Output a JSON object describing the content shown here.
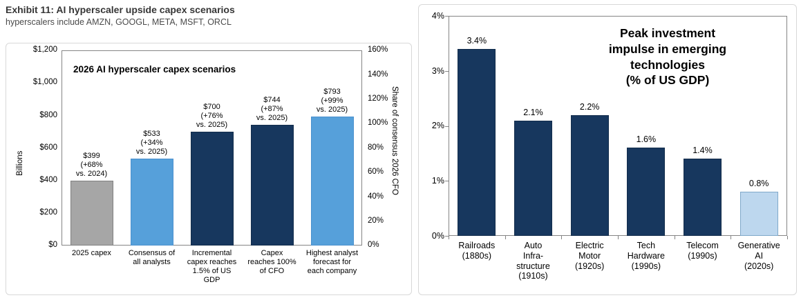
{
  "header": {
    "title": "Exhibit 11: AI hyperscaler upside capex scenarios",
    "subtitle": "hyperscalers include AMZN, GOOGL, META, MSFT, ORCL"
  },
  "colors": {
    "navy": {
      "fill": "#17375E",
      "border": "#122C4B"
    },
    "blue": {
      "fill": "#56A0DA",
      "border": "#4A90CE"
    },
    "pale": {
      "fill": "#BDD7EE",
      "border": "#7FA8C9"
    },
    "gray": {
      "fill": "#A6A6A6",
      "border": "#7F7F7F"
    }
  },
  "chart_data": [
    {
      "id": "capex",
      "type": "bar",
      "title": "2026 AI hyperscaler capex scenarios",
      "ylabel": "Billions",
      "ylabel_right": "Share of consensus 2026 CFO",
      "ylim": [
        0,
        1200
      ],
      "ylim_right": [
        0,
        160
      ],
      "grid": false,
      "legend": "none",
      "yticks_left": [
        "$1,200",
        "$1,000",
        "$800",
        "$600",
        "$400",
        "$200",
        "$0"
      ],
      "yticks_right": [
        "160%",
        "140%",
        "120%",
        "100%",
        "80%",
        "60%",
        "40%",
        "20%",
        "0%"
      ],
      "categories": [
        "2025 capex",
        "Consensus of\nall analysts",
        "Incremental\ncapex reaches\n1.5% of US\nGDP",
        "Capex\nreaches 100%\nof CFO",
        "Highest analyst\nforecast for\neach company"
      ],
      "values": [
        399,
        533,
        700,
        744,
        793
      ],
      "bar_labels": [
        "$399\n(+68%\nvs. 2024)",
        "$533\n(+34%\nvs. 2025)",
        "$700\n(+76%\nvs. 2025)",
        "$744\n(+87%\nvs. 2025)",
        "$793\n(+99%\nvs. 2025)"
      ],
      "bar_colors": [
        "gray",
        "blue",
        "navy",
        "navy",
        "blue"
      ]
    },
    {
      "id": "impulse",
      "type": "bar",
      "title": "Peak investment\nimpulse in emerging\ntechnologies\n(% of US GDP)",
      "ylabel": "",
      "ylim": [
        0,
        4
      ],
      "grid": false,
      "legend": "none",
      "yticks_left": [
        "4%",
        "3%",
        "2%",
        "1%",
        "0%"
      ],
      "categories": [
        "Railroads\n(1880s)",
        "Auto\nInfra-\nstructure\n(1910s)",
        "Electric\nMotor\n(1920s)",
        "Tech\nHardware\n(1990s)",
        "Telecom\n(1990s)",
        "Generative\nAI\n(2020s)"
      ],
      "values": [
        3.4,
        2.1,
        2.2,
        1.6,
        1.4,
        0.8
      ],
      "bar_labels": [
        "3.4%",
        "2.1%",
        "2.2%",
        "1.6%",
        "1.4%",
        "0.8%"
      ],
      "bar_colors": [
        "navy",
        "navy",
        "navy",
        "navy",
        "navy",
        "pale"
      ]
    }
  ]
}
